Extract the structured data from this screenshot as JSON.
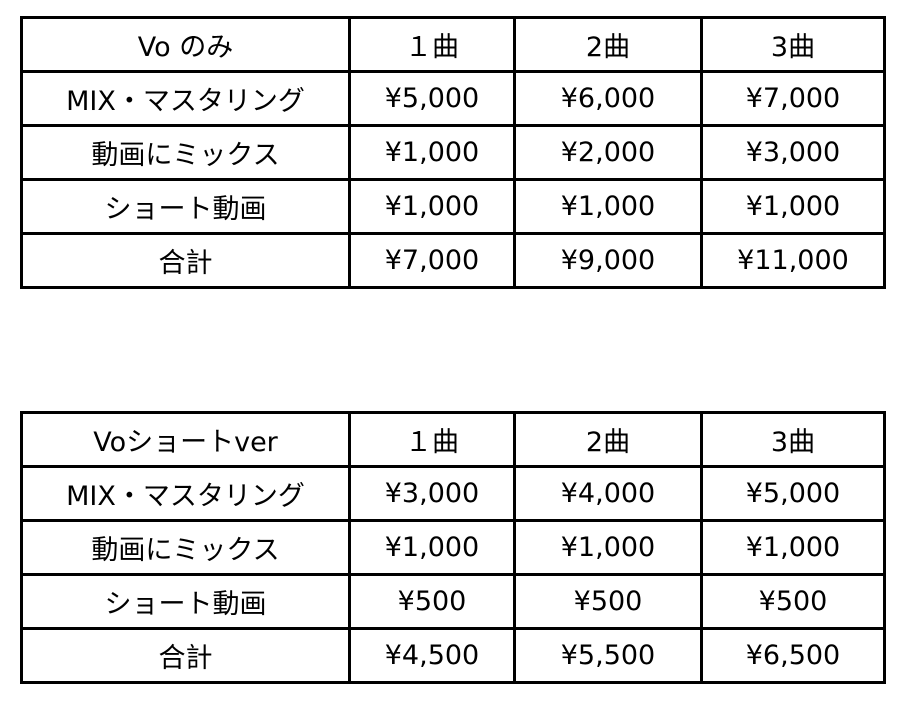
{
  "tables": [
    {
      "header": [
        "Vo のみ",
        "１曲",
        "2曲",
        "3曲"
      ],
      "rows": [
        [
          "MIX・マスタリング",
          "¥5,000",
          "¥6,000",
          "¥7,000"
        ],
        [
          "動画にミックス",
          "¥1,000",
          "¥2,000",
          "¥3,000"
        ],
        [
          "ショート動画",
          "¥1,000",
          "¥1,000",
          "¥1,000"
        ],
        [
          "合計",
          "¥7,000",
          "¥9,000",
          "¥11,000"
        ]
      ]
    },
    {
      "header": [
        "Voショートver",
        "１曲",
        "2曲",
        "3曲"
      ],
      "rows": [
        [
          "MIX・マスタリング",
          "¥3,000",
          "¥4,000",
          "¥5,000"
        ],
        [
          "動画にミックス",
          "¥1,000",
          "¥1,000",
          "¥1,000"
        ],
        [
          "ショート動画",
          "¥500",
          "¥500",
          "¥500"
        ],
        [
          "合計",
          "¥4,500",
          "¥5,500",
          "¥6,500"
        ]
      ]
    }
  ]
}
